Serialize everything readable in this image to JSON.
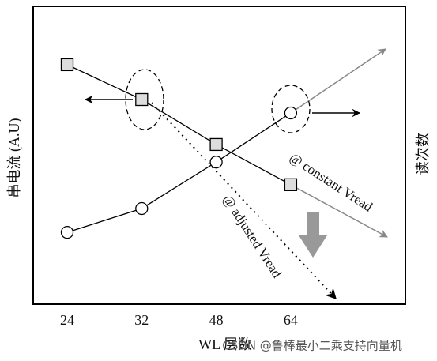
{
  "chart_data": {
    "type": "line",
    "x_label": "WL 层数",
    "y_label": "串电流 (A.U)",
    "y2_label": "读次数",
    "categories": [
      "24",
      "32",
      "48",
      "64"
    ],
    "ylim": [
      0,
      100
    ],
    "series": [
      {
        "marker": "square",
        "color": "#000000",
        "values": [
          80.4,
          68.7,
          53.6,
          40.1
        ]
      },
      {
        "marker": "circle",
        "color": "#000000",
        "values": [
          24.1,
          32.1,
          47.7,
          64.2
        ]
      }
    ],
    "annotations": [
      "@ constant Vread",
      "@ adjusted Vread"
    ],
    "watermark": "CSDN @鲁棒最小二乘支持向量机"
  }
}
